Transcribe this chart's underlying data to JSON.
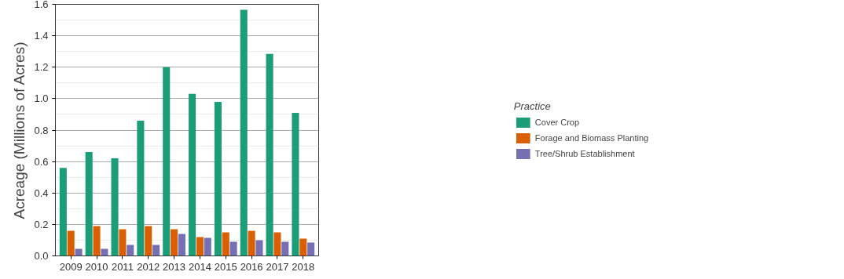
{
  "chart_data": {
    "type": "bar",
    "ylabel": "Acreage (Millions of Acres)",
    "legend_title": "Practice",
    "categories": [
      "2009",
      "2010",
      "2011",
      "2012",
      "2013",
      "2014",
      "2015",
      "2016",
      "2017",
      "2018"
    ],
    "series": [
      {
        "name": "Cover Crop",
        "color": "#1b9e77",
        "values": [
          0.56,
          0.66,
          0.62,
          0.86,
          1.2,
          1.03,
          0.98,
          1.565,
          1.285,
          0.91
        ]
      },
      {
        "name": "Forage and Biomass Planting",
        "color": "#d95f02",
        "values": [
          0.16,
          0.19,
          0.17,
          0.19,
          0.17,
          0.12,
          0.15,
          0.16,
          0.15,
          0.11
        ]
      },
      {
        "name": "Tree/Shrub Establishment",
        "color": "#7570b3",
        "values": [
          0.045,
          0.045,
          0.07,
          0.07,
          0.14,
          0.115,
          0.09,
          0.1,
          0.09,
          0.085
        ]
      }
    ],
    "ylim": [
      0,
      1.6
    ],
    "yticks": [
      {
        "value": 0,
        "label": "0.0"
      },
      {
        "value": 0.2,
        "label": "0.2"
      },
      {
        "value": 0.4,
        "label": "0.4"
      },
      {
        "value": 0.6,
        "label": "0.6"
      },
      {
        "value": 0.8,
        "label": "0.8"
      },
      {
        "value": 1.0,
        "label": "1.0"
      },
      {
        "value": 1.2,
        "label": "1.2"
      },
      {
        "value": 1.4,
        "label": "1.4"
      },
      {
        "value": 1.6,
        "label": "1.6"
      }
    ],
    "grid": "y",
    "legend": "right"
  }
}
